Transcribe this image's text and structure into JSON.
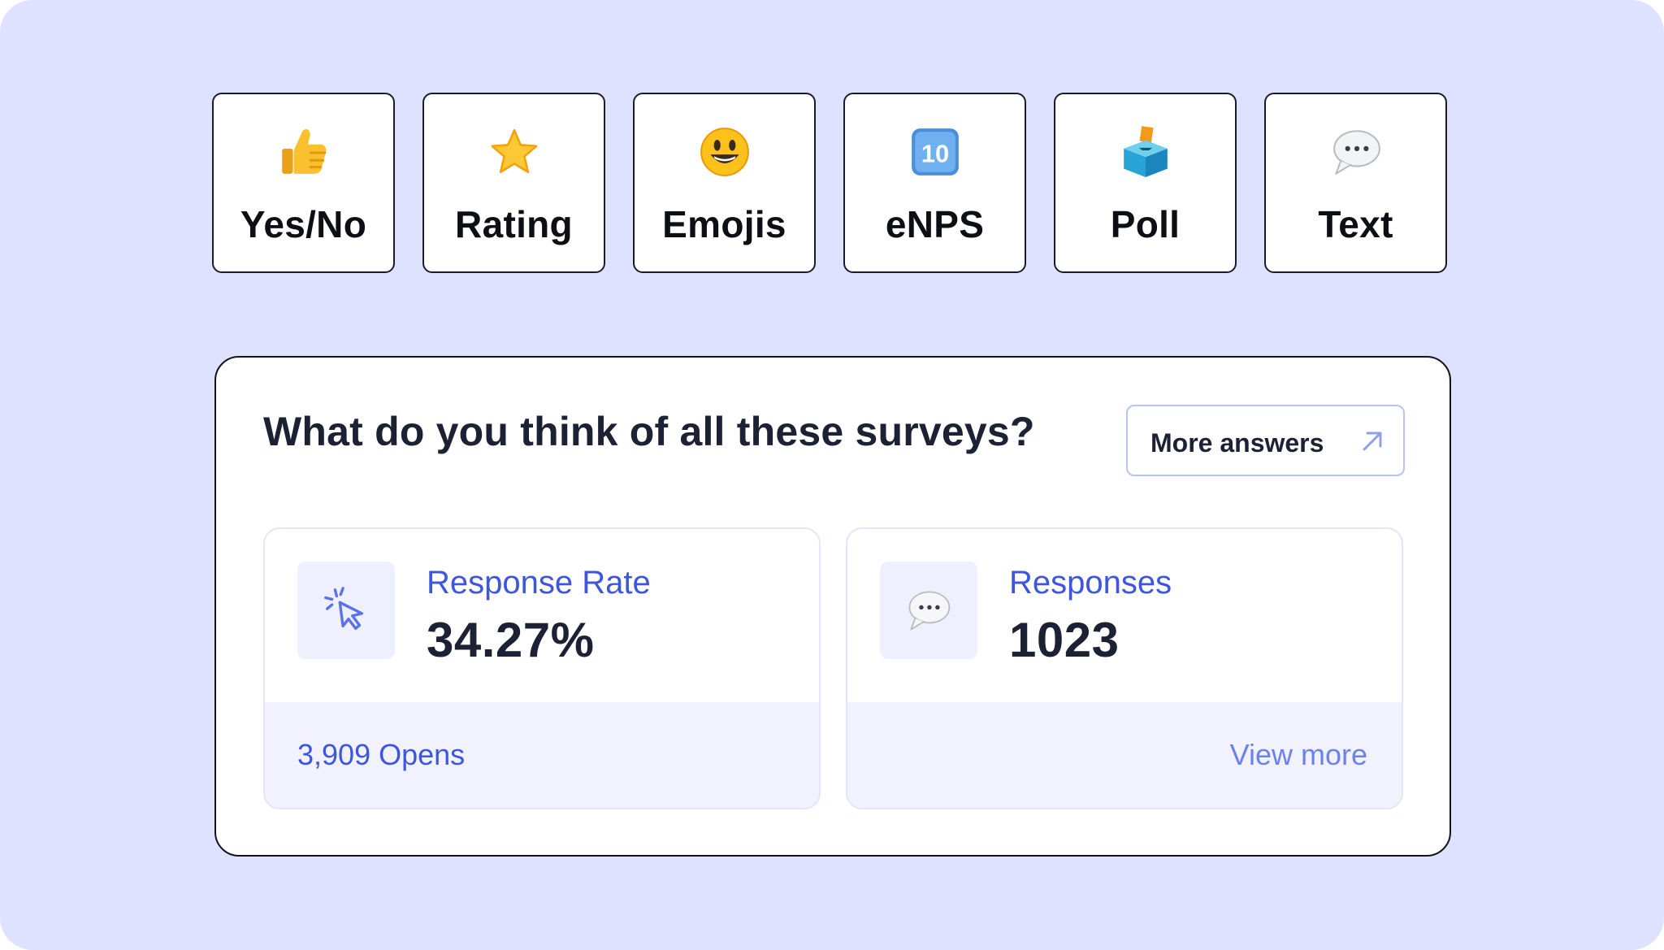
{
  "survey_types": [
    {
      "label": "Yes/No",
      "icon": "thumbs-up-icon"
    },
    {
      "label": "Rating",
      "icon": "star-icon"
    },
    {
      "label": "Emojis",
      "icon": "smiley-icon"
    },
    {
      "label": "eNPS",
      "icon": "keycap-ten-icon",
      "icon_text": "10"
    },
    {
      "label": "Poll",
      "icon": "ballot-box-icon"
    },
    {
      "label": "Text",
      "icon": "speech-bubble-icon"
    }
  ],
  "panel": {
    "question": "What do you think of all these surveys?",
    "more_answers_label": "More answers",
    "stats": [
      {
        "label": "Response Rate",
        "value": "34.27%",
        "footer": "3,909 Opens",
        "icon": "click-cursor-icon"
      },
      {
        "label": "Responses",
        "value": "1023",
        "footer": "View more",
        "icon": "speech-bubble-icon"
      }
    ]
  },
  "colors": {
    "background": "#dfe2fe",
    "accent": "#3d55e0",
    "link_light": "#6b82ec",
    "text_dark": "#1c2134"
  }
}
